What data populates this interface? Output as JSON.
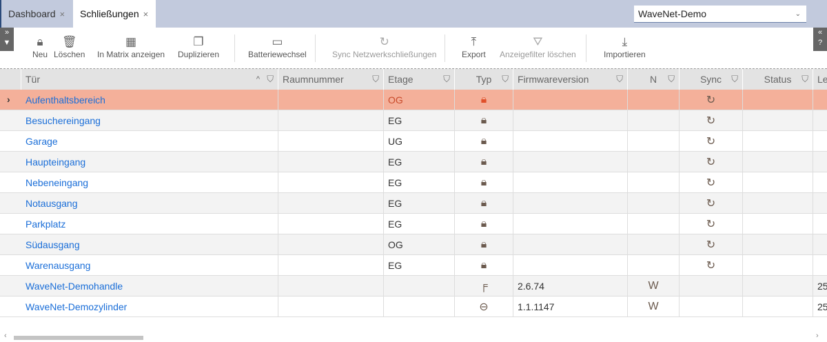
{
  "tabs": [
    {
      "label": "Dashboard",
      "close": "×"
    },
    {
      "label": "Schließungen",
      "close": "×"
    }
  ],
  "project_select": {
    "value": "WaveNet-Demo"
  },
  "toolbar": [
    {
      "label": "Neu",
      "icon": "lock-plus-icon",
      "glyph": "🔒︎",
      "enabled": true
    },
    {
      "label": "Löschen",
      "icon": "trash-icon",
      "glyph": "🗑︎",
      "enabled": true
    },
    {
      "label": "In Matrix anzeigen",
      "icon": "matrix-icon",
      "glyph": "▦",
      "enabled": true
    },
    {
      "label": "Duplizieren",
      "icon": "duplicate-icon",
      "glyph": "❐",
      "enabled": true
    },
    {
      "label": "Batteriewechsel",
      "icon": "battery-icon",
      "glyph": "▭",
      "enabled": true
    },
    {
      "label": "Sync Netzwerkschließungen",
      "icon": "sync-icon",
      "glyph": "↻",
      "enabled": false
    },
    {
      "label": "Export",
      "icon": "export-icon",
      "glyph": "⤒",
      "enabled": true
    },
    {
      "label": "Anzeigefilter löschen",
      "icon": "clear-filter-icon",
      "glyph": "⛛",
      "enabled": false
    },
    {
      "label": "Importieren",
      "icon": "import-icon",
      "glyph": "⤓",
      "enabled": true
    }
  ],
  "columns": [
    "Tür",
    "Raumnummer",
    "Etage",
    "Typ",
    "Firmwareversion",
    "N",
    "Sync",
    "Status",
    "Le"
  ],
  "sort_indicator": "^",
  "rows": [
    {
      "tuer": "Aufenthaltsbereich",
      "raum": "",
      "etage": "OG",
      "typ": "lock-wireless",
      "fw": "",
      "n": "",
      "sync": "↻",
      "status": "",
      "le": "",
      "selected": true
    },
    {
      "tuer": "Besuchereingang",
      "raum": "",
      "etage": "EG",
      "typ": "lock-wireless",
      "fw": "",
      "n": "",
      "sync": "↻",
      "status": "",
      "le": ""
    },
    {
      "tuer": "Garage",
      "raum": "",
      "etage": "UG",
      "typ": "lock-wireless",
      "fw": "",
      "n": "",
      "sync": "↻",
      "status": "",
      "le": ""
    },
    {
      "tuer": "Haupteingang",
      "raum": "",
      "etage": "EG",
      "typ": "lock-wireless",
      "fw": "",
      "n": "",
      "sync": "↻",
      "status": "",
      "le": ""
    },
    {
      "tuer": "Nebeneingang",
      "raum": "",
      "etage": "EG",
      "typ": "lock-wireless",
      "fw": "",
      "n": "",
      "sync": "↻",
      "status": "",
      "le": ""
    },
    {
      "tuer": "Notausgang",
      "raum": "",
      "etage": "EG",
      "typ": "lock-wireless",
      "fw": "",
      "n": "",
      "sync": "↻",
      "status": "",
      "le": ""
    },
    {
      "tuer": "Parkplatz",
      "raum": "",
      "etage": "EG",
      "typ": "lock-wireless",
      "fw": "",
      "n": "",
      "sync": "↻",
      "status": "",
      "le": ""
    },
    {
      "tuer": "Südausgang",
      "raum": "",
      "etage": "OG",
      "typ": "lock-wireless",
      "fw": "",
      "n": "",
      "sync": "↻",
      "status": "",
      "le": ""
    },
    {
      "tuer": "Warenausgang",
      "raum": "",
      "etage": "EG",
      "typ": "lock-wireless",
      "fw": "",
      "n": "",
      "sync": "↻",
      "status": "",
      "le": ""
    },
    {
      "tuer": "WaveNet-Demohandle",
      "raum": "",
      "etage": "",
      "typ": "handle",
      "fw": "2.6.74",
      "n": "W",
      "sync": "",
      "status": "",
      "le": "25"
    },
    {
      "tuer": "WaveNet-Demozylinder",
      "raum": "",
      "etage": "",
      "typ": "cylinder",
      "fw": "1.1.1147",
      "n": "W",
      "sync": "",
      "status": "",
      "le": "25"
    }
  ],
  "colors": {
    "selected_row": "#f4b09a",
    "link": "#1a6ed8",
    "accent": "#e0502a",
    "topbar": "#c2cadd"
  }
}
